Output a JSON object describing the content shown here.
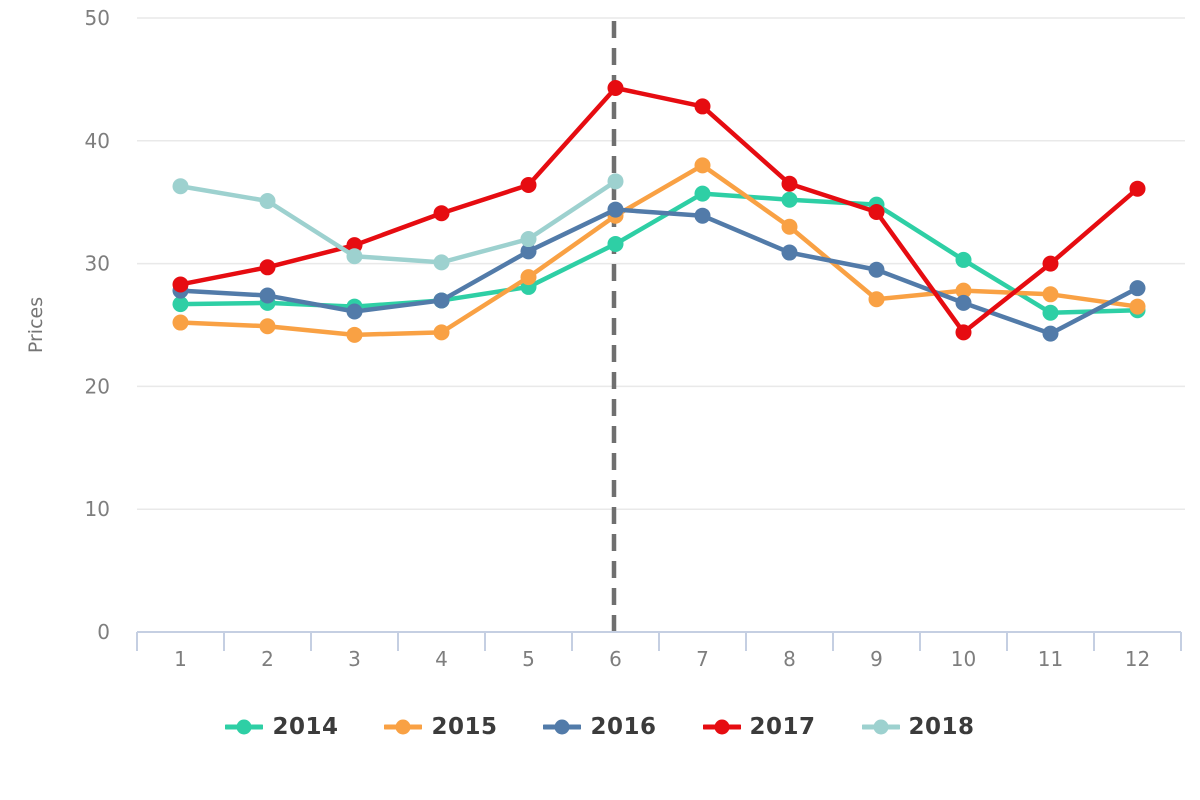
{
  "chart_data": {
    "type": "line",
    "title": "",
    "xlabel": "",
    "ylabel": "Prices",
    "categories": [
      "1",
      "2",
      "3",
      "4",
      "5",
      "6",
      "7",
      "8",
      "9",
      "10",
      "11",
      "12"
    ],
    "series": [
      {
        "name": "2014",
        "color": "#2ecfa5",
        "values": [
          26.7,
          26.8,
          26.5,
          27.0,
          28.1,
          31.6,
          35.7,
          35.2,
          34.8,
          30.3,
          26.0,
          26.2
        ]
      },
      {
        "name": "2015",
        "color": "#f9a144",
        "values": [
          25.2,
          24.9,
          24.2,
          24.4,
          28.9,
          33.9,
          38.0,
          33.0,
          27.1,
          27.8,
          27.5,
          26.5
        ]
      },
      {
        "name": "2016",
        "color": "#527ba9",
        "values": [
          27.8,
          27.4,
          26.1,
          27.0,
          31.0,
          34.4,
          33.9,
          30.9,
          29.5,
          26.8,
          24.3,
          28.0
        ]
      },
      {
        "name": "2017",
        "color": "#e60c11",
        "values": [
          28.3,
          29.7,
          31.5,
          34.1,
          36.4,
          44.3,
          42.8,
          36.5,
          34.2,
          24.4,
          30.0,
          36.1
        ]
      },
      {
        "name": "2018",
        "color": "#9dd1cf",
        "values": [
          36.3,
          35.1,
          30.6,
          30.1,
          32.0,
          36.7
        ]
      }
    ],
    "ylim": [
      0,
      50
    ],
    "yticks": [
      0,
      10,
      20,
      30,
      40,
      50
    ],
    "grid": true,
    "legend_position": "bottom",
    "annotations": {
      "vline_at_category": "6",
      "line_style": "dashed",
      "color": "#6f6f6f"
    },
    "style": {
      "grid_color": "#e9e9e9",
      "axis_color": "#c5cfe2",
      "tick_label_color": "#7e7e7e",
      "axis_title_color": "#757575",
      "legend_text_color": "#3b3b3b",
      "background": "#ffffff"
    }
  }
}
